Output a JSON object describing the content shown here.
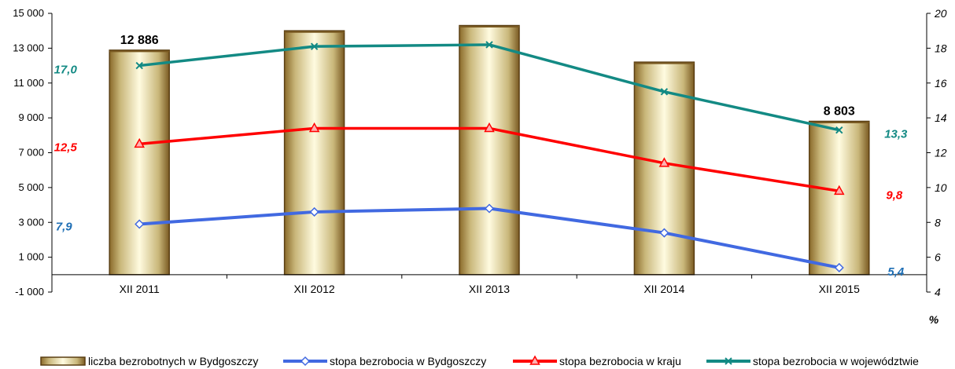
{
  "chart_data": {
    "type": "bar",
    "categories": [
      "XII 2011",
      "XII 2012",
      "XII 2013",
      "XII 2014",
      "XII 2015"
    ],
    "bars": {
      "name": "liczba bezrobotnych w Bydgoszczy",
      "values": [
        12886,
        14000,
        14300,
        12200,
        8803
      ],
      "labels": [
        "12 886",
        "",
        "",
        "",
        "8 803"
      ],
      "color": "#c8c07a"
    },
    "lines": [
      {
        "name": "stopa bezrobocia w Bydgoszczy",
        "values": [
          7.9,
          8.6,
          8.8,
          7.4,
          5.4
        ],
        "labels": [
          "7,9",
          "",
          "",
          "",
          "5,4"
        ],
        "color": "#4169e1",
        "label_color": "#1f6fb5",
        "marker": "diamond"
      },
      {
        "name": "stopa bezrobocia w kraju",
        "values": [
          12.5,
          13.4,
          13.4,
          11.4,
          9.8
        ],
        "labels": [
          "12,5",
          "",
          "",
          "",
          "9,8"
        ],
        "color": "#ff0000",
        "label_color": "#ff0000",
        "marker": "triangle"
      },
      {
        "name": "stopa bezrobocia w województwie",
        "values": [
          17.0,
          18.1,
          18.2,
          15.5,
          13.3
        ],
        "labels": [
          "17,0",
          "",
          "",
          "",
          "13,3"
        ],
        "color": "#138a84",
        "label_color": "#138a84",
        "marker": "x"
      }
    ],
    "y_left": {
      "min": -1000,
      "max": 15000,
      "ticks": [
        -1000,
        1000,
        3000,
        5000,
        7000,
        9000,
        11000,
        13000,
        15000
      ],
      "tick_labels": [
        "-1 000",
        "1 000",
        "3 000",
        "5 000",
        "7 000",
        "9 000",
        "11 000",
        "13 000",
        "15 000"
      ]
    },
    "y_right": {
      "min": 4,
      "max": 20,
      "ticks": [
        4,
        6,
        8,
        10,
        12,
        14,
        16,
        18,
        20
      ],
      "tick_labels": [
        "4",
        "6",
        "8",
        "10",
        "12",
        "14",
        "16",
        "18",
        "20"
      ],
      "unit": "%"
    },
    "grid": false,
    "legend_position": "bottom"
  }
}
